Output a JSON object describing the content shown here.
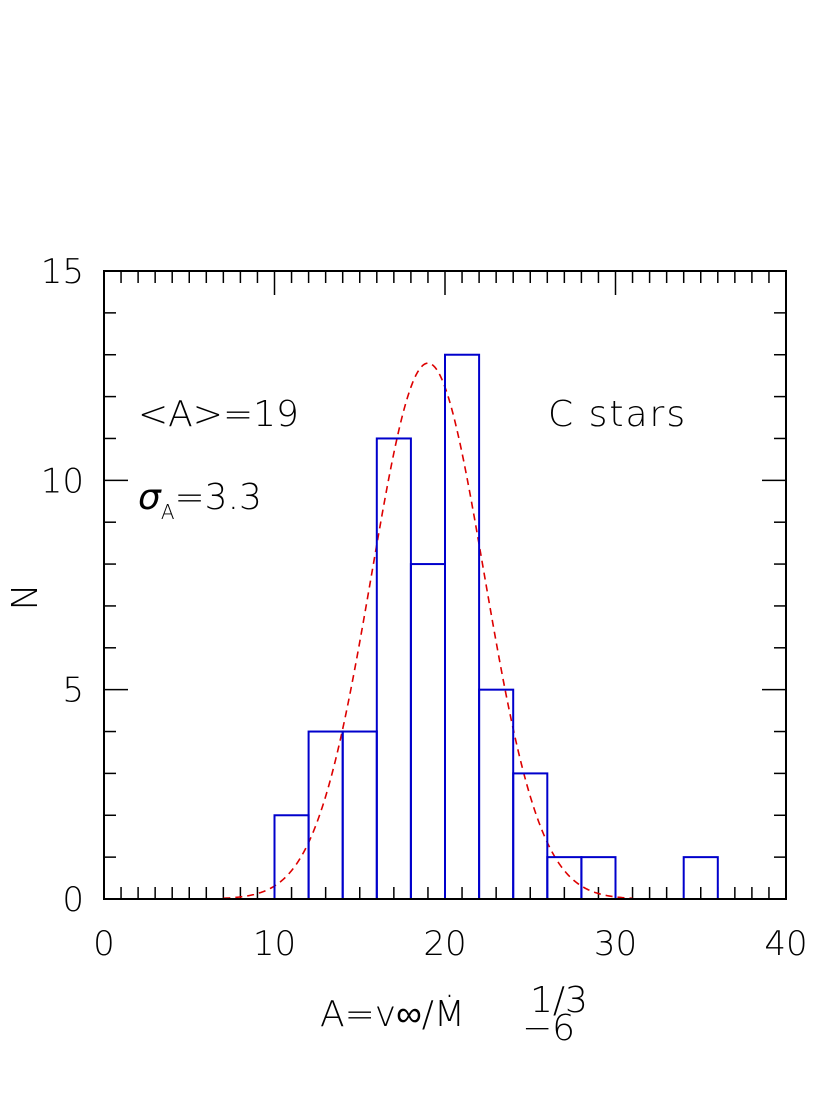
{
  "chart_data": {
    "type": "histogram",
    "xlabel": "A=v∞/Ṁ",
    "xlabel_exponent": "1/3",
    "xlabel_subscript": "−6",
    "ylabel": "N",
    "xlim": [
      0,
      40
    ],
    "ylim": [
      0,
      15
    ],
    "x_ticks": [
      "0",
      "10",
      "20",
      "30",
      "40"
    ],
    "y_ticks": [
      "0",
      "5",
      "10",
      "15"
    ],
    "bin_width": 2,
    "bins": [
      {
        "x0": 10,
        "x1": 12,
        "count": 2
      },
      {
        "x0": 12,
        "x1": 14,
        "count": 4
      },
      {
        "x0": 14,
        "x1": 16,
        "count": 4
      },
      {
        "x0": 16,
        "x1": 18,
        "count": 11
      },
      {
        "x0": 18,
        "x1": 20,
        "count": 8
      },
      {
        "x0": 20,
        "x1": 22,
        "count": 13
      },
      {
        "x0": 22,
        "x1": 24,
        "count": 5
      },
      {
        "x0": 24,
        "x1": 26,
        "count": 3
      },
      {
        "x0": 26,
        "x1": 28,
        "count": 1
      },
      {
        "x0": 28,
        "x1": 30,
        "count": 1
      },
      {
        "x0": 34,
        "x1": 36,
        "count": 1
      }
    ],
    "fit": {
      "type": "gaussian",
      "mean": 19,
      "sigma": 3.3,
      "peak": 12.8
    },
    "annotations": {
      "mean_text": "<A>=19",
      "sigma_symbol": "σ",
      "sigma_sub": "A",
      "sigma_value": "=3.3",
      "label": "C stars"
    },
    "colors": {
      "histogram": "#0000cc",
      "fit": "#dd0000",
      "axes": "#000000"
    }
  }
}
